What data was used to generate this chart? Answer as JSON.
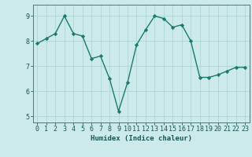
{
  "x": [
    0,
    1,
    2,
    3,
    4,
    5,
    6,
    7,
    8,
    9,
    10,
    11,
    12,
    13,
    14,
    15,
    16,
    17,
    18,
    19,
    20,
    21,
    22,
    23
  ],
  "y": [
    7.9,
    8.1,
    8.3,
    9.0,
    8.3,
    8.2,
    7.3,
    7.4,
    6.5,
    5.2,
    6.35,
    7.85,
    8.45,
    9.0,
    8.9,
    8.55,
    8.65,
    8.0,
    6.55,
    6.55,
    6.65,
    6.8,
    6.95,
    6.95
  ],
  "line_color": "#1a7a6e",
  "marker": "D",
  "marker_size": 2.2,
  "bg_color": "#cceaea",
  "grid_color": "#b0d4d4",
  "xlabel": "Humidex (Indice chaleur)",
  "xlim": [
    -0.5,
    23.5
  ],
  "ylim": [
    4.75,
    9.45
  ],
  "yticks": [
    5,
    6,
    7,
    8,
    9
  ],
  "xticks": [
    0,
    1,
    2,
    3,
    4,
    5,
    6,
    7,
    8,
    9,
    10,
    11,
    12,
    13,
    14,
    15,
    16,
    17,
    18,
    19,
    20,
    21,
    22,
    23
  ],
  "axis_color": "#507878",
  "tick_color": "#1a5555",
  "label_fontsize": 6.5,
  "tick_fontsize": 6.0,
  "linewidth": 1.0
}
